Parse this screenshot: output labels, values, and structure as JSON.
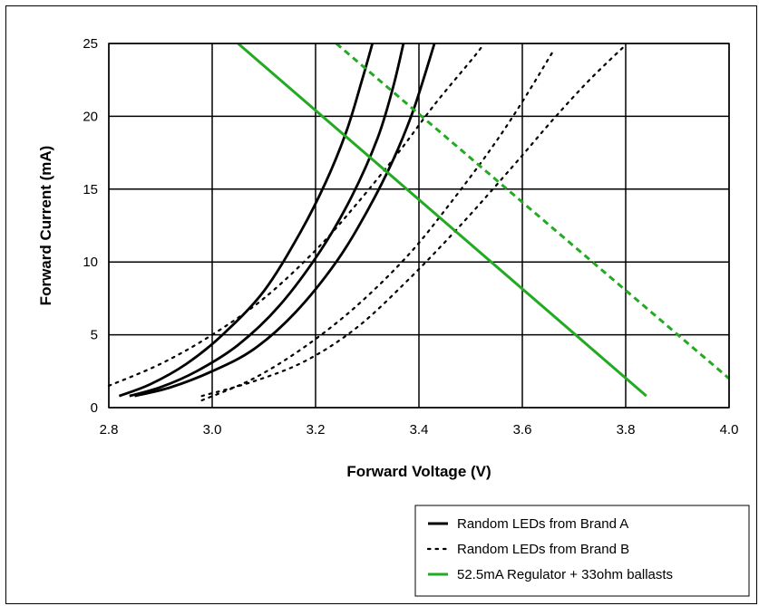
{
  "chart_data": {
    "type": "line",
    "title": "",
    "xlabel": "Forward Voltage (V)",
    "ylabel": "Forward Current (mA)",
    "xlim": [
      2.8,
      4.0
    ],
    "ylim": [
      0,
      25
    ],
    "xticks": [
      2.8,
      3.0,
      3.2,
      3.4,
      3.6,
      3.8,
      4.0
    ],
    "xtick_labels": [
      "2.8",
      "3.0",
      "3.2",
      "3.4",
      "3.6",
      "3.8",
      "4.0"
    ],
    "yticks": [
      0,
      5,
      10,
      15,
      20,
      25
    ],
    "ytick_labels": [
      "0",
      "5",
      "10",
      "15",
      "20",
      "25"
    ],
    "grid": true,
    "legend_position": "bottom-right",
    "legend": [
      {
        "label": "Random LEDs from Brand A",
        "style": "solid",
        "color": "#000000"
      },
      {
        "label": "Random LEDs from Brand B",
        "style": "dotted",
        "color": "#000000"
      },
      {
        "label": "52.5mA Regulator + 33ohm ballasts",
        "style": "solid",
        "color": "#22aa22"
      }
    ],
    "series": [
      {
        "group": "Random LEDs from Brand A",
        "style": "solid",
        "color": "#000000",
        "x": [
          2.82,
          2.88,
          2.95,
          3.02,
          3.1,
          3.17,
          3.22,
          3.26,
          3.29,
          3.31
        ],
        "y": [
          0.8,
          1.6,
          3.0,
          5.0,
          8.0,
          12.0,
          15.5,
          19.0,
          22.5,
          25
        ]
      },
      {
        "group": "Random LEDs from Brand A",
        "style": "solid",
        "color": "#000000",
        "x": [
          2.84,
          2.9,
          2.97,
          3.05,
          3.13,
          3.21,
          3.27,
          3.32,
          3.35,
          3.37
        ],
        "y": [
          0.8,
          1.4,
          2.5,
          4.3,
          7.0,
          10.8,
          14.5,
          18.5,
          22.0,
          25
        ]
      },
      {
        "group": "Random LEDs from Brand A",
        "style": "solid",
        "color": "#000000",
        "x": [
          2.85,
          2.92,
          3.0,
          3.08,
          3.16,
          3.24,
          3.3,
          3.35,
          3.39,
          3.43
        ],
        "y": [
          0.8,
          1.4,
          2.5,
          4.0,
          6.5,
          10.0,
          13.5,
          17.0,
          20.5,
          25
        ]
      },
      {
        "group": "Random LEDs from Brand B",
        "style": "dotted",
        "color": "#000000",
        "x": [
          2.8,
          2.9,
          3.0,
          3.1,
          3.2,
          3.28,
          3.36,
          3.43,
          3.5,
          3.52
        ],
        "y": [
          1.5,
          3.0,
          5.0,
          7.5,
          10.8,
          14.0,
          17.5,
          20.8,
          23.8,
          24.7
        ]
      },
      {
        "group": "Random LEDs from Brand B",
        "style": "dotted",
        "color": "#000000",
        "x": [
          2.98,
          3.08,
          3.18,
          3.28,
          3.38,
          3.46,
          3.54,
          3.6,
          3.66
        ],
        "y": [
          0.5,
          2.0,
          4.2,
          7.0,
          10.5,
          14.0,
          17.8,
          21.0,
          24.5
        ]
      },
      {
        "group": "Random LEDs from Brand B",
        "style": "dotted",
        "color": "#000000",
        "x": [
          2.98,
          3.08,
          3.18,
          3.28,
          3.38,
          3.48,
          3.58,
          3.66,
          3.73,
          3.8
        ],
        "y": [
          0.8,
          1.8,
          3.2,
          5.5,
          8.8,
          12.5,
          16.5,
          19.8,
          22.5,
          24.9
        ]
      },
      {
        "group": "52.5mA Regulator + 33ohm ballasts",
        "style": "solid",
        "color": "#22aa22",
        "x": [
          3.05,
          3.84
        ],
        "y": [
          25,
          0.8
        ]
      },
      {
        "group": "52.5mA Regulator + 33ohm ballasts",
        "style": "dashed",
        "color": "#22aa22",
        "x": [
          3.24,
          4.0
        ],
        "y": [
          25,
          2.0
        ]
      }
    ]
  }
}
